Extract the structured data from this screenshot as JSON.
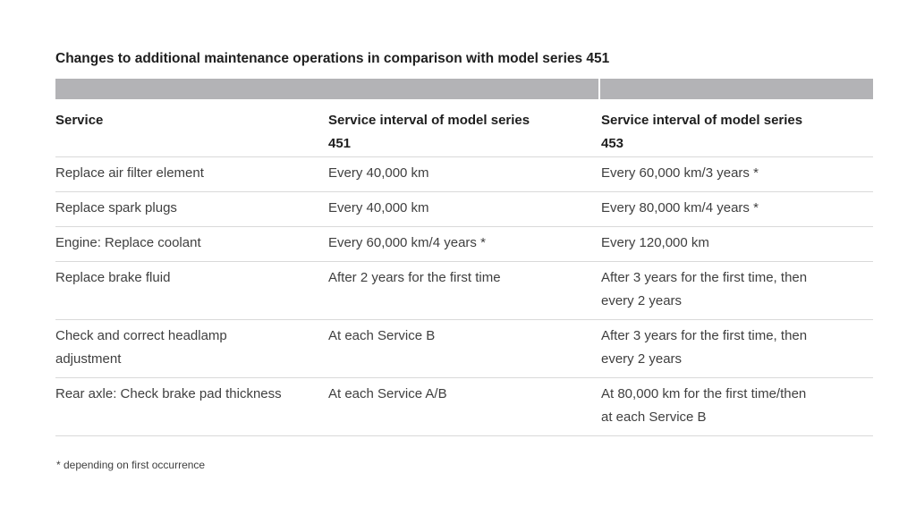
{
  "page": {
    "title": "Changes to additional maintenance operations in comparison with model series 451",
    "footnote": "* depending on first occurrence"
  },
  "table": {
    "columns": [
      {
        "label": "Service"
      },
      {
        "label": "Service interval of model series\n451"
      },
      {
        "label": "Service interval of model series\n453"
      }
    ],
    "rows": [
      {
        "service": "Replace air filter element",
        "interval_451": "Every 40,000 km",
        "interval_453": "Every 60,000 km/3 years *"
      },
      {
        "service": "Replace spark plugs",
        "interval_451": "Every 40,000 km",
        "interval_453": "Every 80,000 km/4 years *"
      },
      {
        "service": "Engine: Replace coolant",
        "interval_451": "Every 60,000 km/4 years *",
        "interval_453": "Every 120,000 km"
      },
      {
        "service": "Replace brake fluid",
        "interval_451": "After 2 years for the first time",
        "interval_453": "After 3 years for the first time, then\nevery 2 years"
      },
      {
        "service": "Check and correct headlamp\nadjustment",
        "interval_451": "At each Service B",
        "interval_453": "After 3 years for the first time, then\nevery 2 years"
      },
      {
        "service": "Rear axle: Check brake pad thickness",
        "interval_451": "At each Service A/B",
        "interval_453": "At 80,000 km for the first time/then\nat each Service B"
      }
    ]
  },
  "colors": {
    "header_bar": "#b3b3b6",
    "divider": "#d9d9d9",
    "heading_text": "#1e1e1e",
    "body_text": "#3f3f3f",
    "background": "#ffffff"
  }
}
